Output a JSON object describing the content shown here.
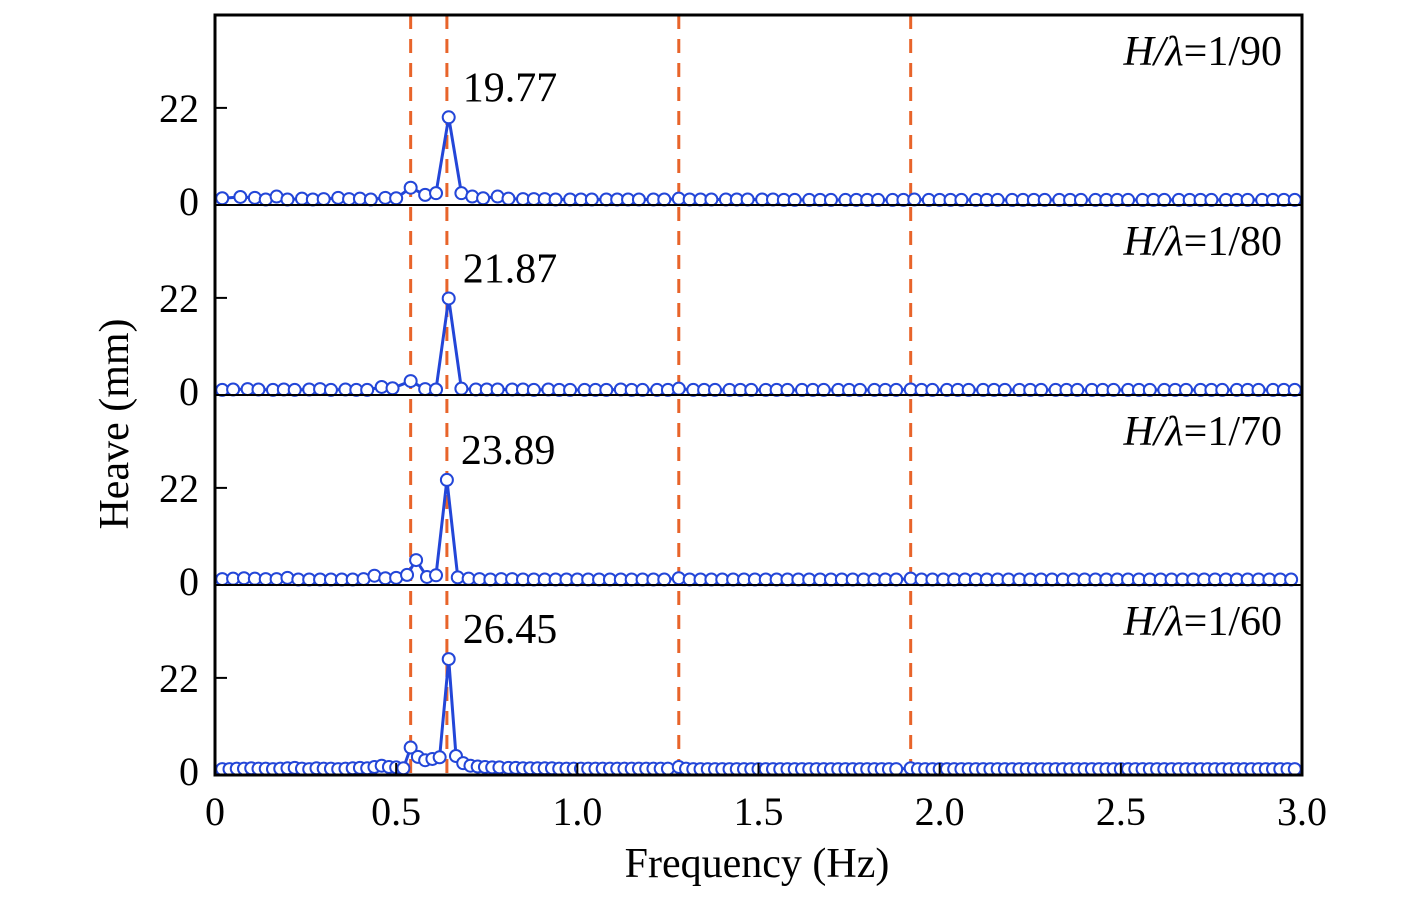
{
  "chart_data": {
    "type": "line",
    "xlabel": "Frequency (Hz)",
    "ylabel": "Heave (mm)",
    "xlim": [
      0,
      3.0
    ],
    "xticks": [
      "0",
      "0.5",
      "1.0",
      "1.5",
      "2.0",
      "2.5",
      "3.0"
    ],
    "xtick_values": [
      0,
      0.5,
      1.0,
      1.5,
      2.0,
      2.5,
      3.0
    ],
    "ylim": [
      -1,
      44
    ],
    "yticks": [
      "0",
      "22"
    ],
    "ytick_values": [
      0,
      22
    ],
    "vlines": [
      0.54,
      0.64,
      1.28,
      1.92
    ],
    "vline_color": "#e8642a",
    "series_color": "#2346d8",
    "grid": false,
    "panels": [
      {
        "label_prefix": "H/λ",
        "label_value": "=1/90",
        "peak": {
          "x": 0.645,
          "y": 19.77,
          "label": "19.77"
        },
        "x": [
          0.02,
          0.07,
          0.11,
          0.14,
          0.17,
          0.2,
          0.24,
          0.27,
          0.3,
          0.34,
          0.37,
          0.4,
          0.43,
          0.47,
          0.5,
          0.54,
          0.58,
          0.61,
          0.645,
          0.68,
          0.71,
          0.74,
          0.78,
          0.81,
          0.85,
          0.88,
          0.91,
          0.94,
          0.98,
          1.01,
          1.04,
          1.08,
          1.11,
          1.14,
          1.17,
          1.21,
          1.24,
          1.28,
          1.31,
          1.34,
          1.37,
          1.41,
          1.44,
          1.47,
          1.51,
          1.54,
          1.57,
          1.6,
          1.64,
          1.67,
          1.7,
          1.74,
          1.77,
          1.8,
          1.83,
          1.87,
          1.9,
          1.93,
          1.97,
          2.0,
          2.03,
          2.06,
          2.1,
          2.13,
          2.16,
          2.2,
          2.23,
          2.26,
          2.29,
          2.33,
          2.36,
          2.39,
          2.43,
          2.46,
          2.49,
          2.52,
          2.56,
          2.59,
          2.62,
          2.66,
          2.69,
          2.72,
          2.75,
          2.79,
          2.82,
          2.85,
          2.89,
          2.92,
          2.95,
          2.98
        ],
        "y": [
          0.6,
          0.9,
          0.7,
          0.3,
          1.0,
          0.3,
          0.5,
          0.3,
          0.4,
          0.7,
          0.4,
          0.5,
          0.3,
          0.7,
          0.6,
          3.1,
          1.4,
          1.8,
          19.77,
          1.8,
          1.0,
          0.6,
          1.0,
          0.5,
          0.4,
          0.4,
          0.4,
          0.3,
          0.3,
          0.3,
          0.3,
          0.3,
          0.3,
          0.3,
          0.3,
          0.3,
          0.3,
          0.5,
          0.3,
          0.3,
          0.3,
          0.3,
          0.3,
          0.3,
          0.3,
          0.3,
          0.2,
          0.2,
          0.2,
          0.2,
          0.2,
          0.2,
          0.2,
          0.2,
          0.2,
          0.2,
          0.2,
          0.3,
          0.2,
          0.2,
          0.2,
          0.2,
          0.2,
          0.2,
          0.2,
          0.2,
          0.2,
          0.2,
          0.2,
          0.2,
          0.2,
          0.2,
          0.2,
          0.2,
          0.2,
          0.2,
          0.2,
          0.2,
          0.2,
          0.2,
          0.2,
          0.2,
          0.2,
          0.2,
          0.2,
          0.2,
          0.2,
          0.2,
          0.2,
          0.2
        ]
      },
      {
        "label_prefix": "H/λ",
        "label_value": "=1/80",
        "peak": {
          "x": 0.645,
          "y": 21.87,
          "label": "21.87"
        },
        "x": [
          0.02,
          0.05,
          0.09,
          0.12,
          0.16,
          0.19,
          0.22,
          0.26,
          0.29,
          0.32,
          0.36,
          0.39,
          0.42,
          0.46,
          0.49,
          0.54,
          0.58,
          0.61,
          0.645,
          0.68,
          0.72,
          0.75,
          0.78,
          0.82,
          0.85,
          0.88,
          0.92,
          0.95,
          0.98,
          1.02,
          1.05,
          1.08,
          1.12,
          1.15,
          1.18,
          1.22,
          1.25,
          1.28,
          1.32,
          1.35,
          1.38,
          1.42,
          1.45,
          1.48,
          1.52,
          1.55,
          1.58,
          1.62,
          1.65,
          1.68,
          1.72,
          1.75,
          1.78,
          1.82,
          1.85,
          1.88,
          1.92,
          1.95,
          1.98,
          2.02,
          2.05,
          2.08,
          2.12,
          2.15,
          2.18,
          2.22,
          2.25,
          2.28,
          2.32,
          2.35,
          2.38,
          2.42,
          2.45,
          2.48,
          2.52,
          2.55,
          2.58,
          2.62,
          2.65,
          2.68,
          2.72,
          2.75,
          2.78,
          2.82,
          2.85,
          2.88,
          2.92,
          2.95,
          2.98
        ],
        "y": [
          0.2,
          0.3,
          0.4,
          0.3,
          0.2,
          0.3,
          0.2,
          0.3,
          0.4,
          0.2,
          0.3,
          0.2,
          0.2,
          0.9,
          0.6,
          2.3,
          0.4,
          0.3,
          21.87,
          0.5,
          0.3,
          0.3,
          0.3,
          0.3,
          0.3,
          0.2,
          0.3,
          0.2,
          0.2,
          0.2,
          0.2,
          0.2,
          0.3,
          0.2,
          0.2,
          0.2,
          0.2,
          0.5,
          0.2,
          0.2,
          0.2,
          0.2,
          0.2,
          0.2,
          0.2,
          0.2,
          0.2,
          0.2,
          0.2,
          0.2,
          0.2,
          0.2,
          0.2,
          0.2,
          0.2,
          0.2,
          0.3,
          0.2,
          0.2,
          0.2,
          0.2,
          0.2,
          0.2,
          0.2,
          0.2,
          0.2,
          0.2,
          0.2,
          0.2,
          0.2,
          0.2,
          0.2,
          0.2,
          0.2,
          0.2,
          0.2,
          0.2,
          0.2,
          0.2,
          0.2,
          0.2,
          0.2,
          0.2,
          0.2,
          0.2,
          0.2,
          0.2,
          0.2,
          0.2
        ]
      },
      {
        "label_prefix": "H/λ",
        "label_value": "=1/70",
        "peak": {
          "x": 0.64,
          "y": 23.89,
          "label": "23.89"
        },
        "x": [
          0.02,
          0.05,
          0.08,
          0.11,
          0.14,
          0.17,
          0.2,
          0.23,
          0.26,
          0.29,
          0.32,
          0.35,
          0.38,
          0.41,
          0.44,
          0.47,
          0.5,
          0.53,
          0.555,
          0.585,
          0.61,
          0.64,
          0.67,
          0.7,
          0.73,
          0.76,
          0.79,
          0.82,
          0.85,
          0.88,
          0.91,
          0.94,
          0.97,
          1.0,
          1.03,
          1.06,
          1.09,
          1.12,
          1.15,
          1.18,
          1.21,
          1.24,
          1.28,
          1.31,
          1.34,
          1.37,
          1.4,
          1.43,
          1.46,
          1.49,
          1.52,
          1.55,
          1.58,
          1.61,
          1.64,
          1.67,
          1.7,
          1.73,
          1.76,
          1.79,
          1.82,
          1.85,
          1.88,
          1.92,
          1.95,
          1.98,
          2.01,
          2.04,
          2.07,
          2.1,
          2.13,
          2.16,
          2.19,
          2.22,
          2.25,
          2.28,
          2.31,
          2.34,
          2.37,
          2.4,
          2.43,
          2.46,
          2.49,
          2.52,
          2.55,
          2.58,
          2.61,
          2.64,
          2.67,
          2.7,
          2.73,
          2.76,
          2.79,
          2.82,
          2.85,
          2.88,
          2.91,
          2.94,
          2.97
        ],
        "y": [
          0.4,
          0.5,
          0.6,
          0.5,
          0.4,
          0.4,
          0.7,
          0.3,
          0.3,
          0.3,
          0.3,
          0.3,
          0.3,
          0.4,
          1.2,
          0.6,
          0.7,
          1.4,
          4.9,
          0.9,
          1.3,
          23.89,
          0.8,
          0.5,
          0.4,
          0.3,
          0.4,
          0.4,
          0.3,
          0.3,
          0.3,
          0.3,
          0.3,
          0.3,
          0.3,
          0.3,
          0.3,
          0.3,
          0.3,
          0.3,
          0.3,
          0.3,
          0.6,
          0.3,
          0.3,
          0.3,
          0.3,
          0.3,
          0.3,
          0.3,
          0.3,
          0.3,
          0.3,
          0.3,
          0.3,
          0.3,
          0.3,
          0.3,
          0.3,
          0.3,
          0.3,
          0.3,
          0.3,
          0.5,
          0.3,
          0.3,
          0.3,
          0.3,
          0.3,
          0.3,
          0.3,
          0.3,
          0.3,
          0.3,
          0.3,
          0.3,
          0.3,
          0.3,
          0.3,
          0.3,
          0.3,
          0.3,
          0.3,
          0.3,
          0.3,
          0.3,
          0.3,
          0.3,
          0.3,
          0.3,
          0.3,
          0.3,
          0.3,
          0.3,
          0.3,
          0.3,
          0.3,
          0.3,
          0.3
        ]
      },
      {
        "label_prefix": "H/λ",
        "label_value": "=1/60",
        "peak": {
          "x": 0.645,
          "y": 26.45,
          "label": "26.45"
        },
        "x": [
          0.02,
          0.04,
          0.06,
          0.08,
          0.1,
          0.12,
          0.14,
          0.16,
          0.18,
          0.2,
          0.22,
          0.24,
          0.26,
          0.28,
          0.3,
          0.32,
          0.34,
          0.36,
          0.38,
          0.4,
          0.42,
          0.44,
          0.46,
          0.48,
          0.5,
          0.52,
          0.54,
          0.56,
          0.58,
          0.6,
          0.62,
          0.645,
          0.665,
          0.685,
          0.705,
          0.725,
          0.745,
          0.765,
          0.785,
          0.81,
          0.83,
          0.85,
          0.87,
          0.89,
          0.91,
          0.93,
          0.95,
          0.97,
          0.99,
          1.01,
          1.03,
          1.05,
          1.07,
          1.09,
          1.11,
          1.13,
          1.15,
          1.17,
          1.19,
          1.21,
          1.23,
          1.25,
          1.28,
          1.3,
          1.32,
          1.34,
          1.36,
          1.38,
          1.4,
          1.42,
          1.44,
          1.46,
          1.48,
          1.5,
          1.52,
          1.54,
          1.56,
          1.58,
          1.6,
          1.62,
          1.64,
          1.66,
          1.68,
          1.7,
          1.72,
          1.74,
          1.76,
          1.78,
          1.8,
          1.82,
          1.84,
          1.86,
          1.88,
          1.92,
          1.94,
          1.96,
          1.98,
          2.0,
          2.02,
          2.04,
          2.06,
          2.08,
          2.1,
          2.12,
          2.14,
          2.16,
          2.18,
          2.2,
          2.22,
          2.24,
          2.26,
          2.28,
          2.3,
          2.32,
          2.34,
          2.36,
          2.38,
          2.4,
          2.42,
          2.44,
          2.46,
          2.48,
          2.5,
          2.52,
          2.54,
          2.56,
          2.58,
          2.6,
          2.62,
          2.64,
          2.66,
          2.68,
          2.7,
          2.72,
          2.74,
          2.76,
          2.78,
          2.8,
          2.82,
          2.84,
          2.86,
          2.88,
          2.9,
          2.92,
          2.94,
          2.96,
          2.98
        ],
        "y": [
          0.4,
          0.4,
          0.5,
          0.5,
          0.6,
          0.5,
          0.5,
          0.4,
          0.5,
          0.6,
          0.7,
          0.5,
          0.4,
          0.6,
          0.5,
          0.5,
          0.4,
          0.5,
          0.6,
          0.7,
          0.6,
          0.9,
          1.2,
          0.9,
          0.8,
          0.6,
          5.5,
          3.3,
          2.5,
          2.8,
          3.2,
          26.45,
          3.5,
          1.8,
          1.2,
          1.0,
          0.9,
          0.8,
          0.8,
          0.7,
          0.7,
          0.6,
          0.6,
          0.6,
          0.6,
          0.6,
          0.5,
          0.5,
          0.5,
          0.5,
          0.5,
          0.5,
          0.5,
          0.5,
          0.5,
          0.5,
          0.5,
          0.5,
          0.5,
          0.5,
          0.5,
          0.5,
          0.9,
          0.5,
          0.4,
          0.4,
          0.4,
          0.4,
          0.4,
          0.4,
          0.4,
          0.4,
          0.4,
          0.4,
          0.4,
          0.4,
          0.4,
          0.4,
          0.4,
          0.4,
          0.4,
          0.4,
          0.4,
          0.4,
          0.4,
          0.4,
          0.4,
          0.4,
          0.4,
          0.4,
          0.4,
          0.4,
          0.4,
          0.6,
          0.4,
          0.4,
          0.4,
          0.4,
          0.4,
          0.4,
          0.4,
          0.4,
          0.4,
          0.4,
          0.4,
          0.4,
          0.4,
          0.4,
          0.4,
          0.4,
          0.4,
          0.4,
          0.4,
          0.4,
          0.4,
          0.4,
          0.4,
          0.4,
          0.4,
          0.4,
          0.4,
          0.4,
          0.4,
          0.4,
          0.4,
          0.4,
          0.4,
          0.4,
          0.4,
          0.4,
          0.4,
          0.4,
          0.4,
          0.4,
          0.4,
          0.4,
          0.4,
          0.4,
          0.4,
          0.4,
          0.4,
          0.4,
          0.4,
          0.4,
          0.4,
          0.4,
          0.4
        ]
      }
    ]
  }
}
